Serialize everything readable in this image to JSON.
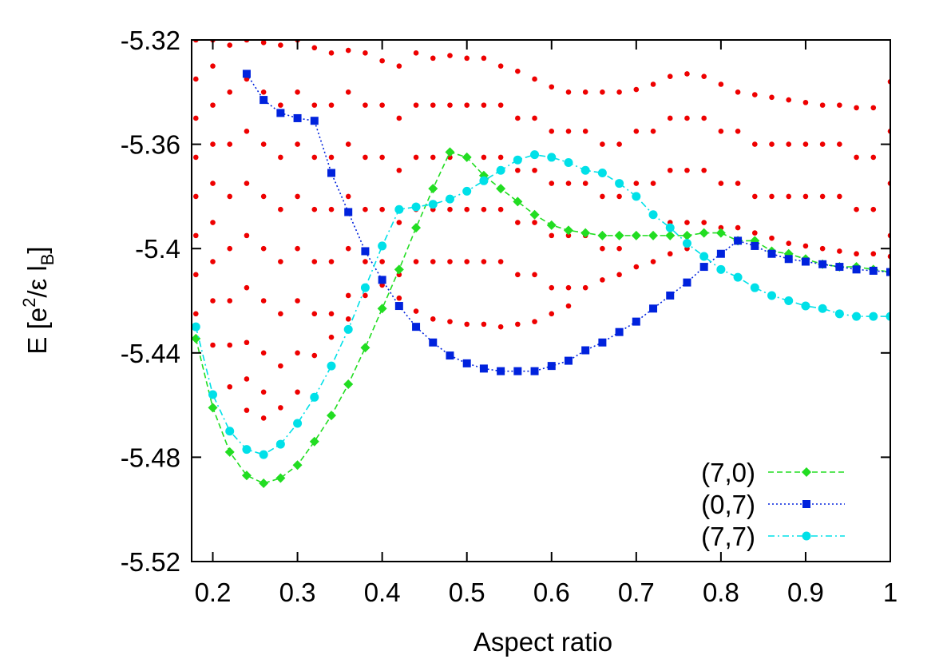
{
  "chart_data": {
    "type": "line",
    "xlabel": "Aspect ratio",
    "ylabel_parts": [
      "E [e",
      "2",
      "/ε l",
      "B",
      "]"
    ],
    "xlim": [
      0.175,
      1
    ],
    "ylim": [
      -5.52,
      -5.32
    ],
    "xticks": [
      0.2,
      0.3,
      0.4,
      0.5,
      0.6,
      0.7,
      0.8,
      0.9,
      1
    ],
    "yticks": [
      -5.32,
      -5.36,
      -5.4,
      -5.44,
      -5.48,
      -5.52
    ],
    "legend": "lower right",
    "x": [
      0.18,
      0.2,
      0.22,
      0.24,
      0.26,
      0.28,
      0.3,
      0.32,
      0.34,
      0.36,
      0.38,
      0.4,
      0.42,
      0.44,
      0.46,
      0.48,
      0.5,
      0.52,
      0.54,
      0.56,
      0.58,
      0.6,
      0.62,
      0.64,
      0.66,
      0.68,
      0.7,
      0.72,
      0.74,
      0.76,
      0.78,
      0.8,
      0.82,
      0.84,
      0.86,
      0.88,
      0.9,
      0.92,
      0.94,
      0.96,
      0.98,
      1
    ],
    "spectrum": {
      "color": "#ee0000",
      "values": [
        [
          -5.32,
          -5.335,
          -5.35,
          -5.365,
          -5.38,
          -5.395,
          -5.41,
          -5.425
        ],
        [
          -5.32,
          -5.33,
          -5.345,
          -5.36,
          -5.375,
          -5.39,
          -5.405,
          -5.42,
          -5.437
        ],
        [
          -5.322,
          -5.34,
          -5.36,
          -5.38,
          -5.4,
          -5.42,
          -5.437,
          -5.453
        ],
        [
          -5.32,
          -5.335,
          -5.355,
          -5.375,
          -5.395,
          -5.415,
          -5.436,
          -5.45,
          -5.462
        ],
        [
          -5.321,
          -5.34,
          -5.36,
          -5.38,
          -5.4,
          -5.42,
          -5.44,
          -5.455,
          -5.465
        ],
        [
          -5.322,
          -5.345,
          -5.365,
          -5.385,
          -5.405,
          -5.425,
          -5.445,
          -5.461
        ],
        [
          -5.32,
          -5.34,
          -5.36,
          -5.38,
          -5.4,
          -5.42,
          -5.44,
          -5.455
        ],
        [
          -5.323,
          -5.345,
          -5.365,
          -5.385,
          -5.405,
          -5.425,
          -5.441
        ],
        [
          -5.325,
          -5.345,
          -5.365,
          -5.385,
          -5.405,
          -5.425,
          -5.434
        ],
        [
          -5.324,
          -5.34,
          -5.36,
          -5.38,
          -5.4,
          -5.418,
          -5.427
        ],
        [
          -5.325,
          -5.345,
          -5.365,
          -5.385,
          -5.405,
          -5.418
        ],
        [
          -5.328,
          -5.345,
          -5.365,
          -5.385,
          -5.405,
          -5.414
        ],
        [
          -5.33,
          -5.35,
          -5.37,
          -5.39,
          -5.41,
          -5.419
        ],
        [
          -5.325,
          -5.345,
          -5.365,
          -5.385,
          -5.405,
          -5.424
        ],
        [
          -5.327,
          -5.345,
          -5.365,
          -5.385,
          -5.405,
          -5.427
        ],
        [
          -5.326,
          -5.345,
          -5.365,
          -5.385,
          -5.405,
          -5.428
        ],
        [
          -5.327,
          -5.345,
          -5.365,
          -5.385,
          -5.405,
          -5.429
        ],
        [
          -5.327,
          -5.345,
          -5.365,
          -5.385,
          -5.405,
          -5.429
        ],
        [
          -5.33,
          -5.345,
          -5.365,
          -5.385,
          -5.405,
          -5.43
        ],
        [
          -5.332,
          -5.35,
          -5.37,
          -5.39,
          -5.41,
          -5.429
        ],
        [
          -5.335,
          -5.35,
          -5.37,
          -5.39,
          -5.41,
          -5.428
        ],
        [
          -5.338,
          -5.355,
          -5.375,
          -5.395,
          -5.415,
          -5.425
        ],
        [
          -5.34,
          -5.355,
          -5.375,
          -5.395,
          -5.415,
          -5.422
        ],
        [
          -5.34,
          -5.355,
          -5.375,
          -5.395,
          -5.415
        ],
        [
          -5.34,
          -5.36,
          -5.38,
          -5.4,
          -5.412
        ],
        [
          -5.34,
          -5.36,
          -5.38,
          -5.4,
          -5.41
        ],
        [
          -5.339,
          -5.355,
          -5.375,
          -5.395,
          -5.407
        ],
        [
          -5.337,
          -5.355,
          -5.375,
          -5.395,
          -5.405
        ],
        [
          -5.334,
          -5.35,
          -5.37,
          -5.39,
          -5.402
        ],
        [
          -5.333,
          -5.35,
          -5.37,
          -5.39,
          -5.4
        ],
        [
          -5.334,
          -5.35,
          -5.37,
          -5.39
        ],
        [
          -5.337,
          -5.355,
          -5.375,
          -5.392
        ],
        [
          -5.34,
          -5.355,
          -5.375,
          -5.392
        ],
        [
          -5.341,
          -5.36,
          -5.38,
          -5.394
        ],
        [
          -5.342,
          -5.36,
          -5.38,
          -5.396
        ],
        [
          -5.343,
          -5.36,
          -5.38,
          -5.398
        ],
        [
          -5.344,
          -5.36,
          -5.38,
          -5.399
        ],
        [
          -5.345,
          -5.36,
          -5.38,
          -5.4
        ],
        [
          -5.345,
          -5.36,
          -5.38,
          -5.401
        ],
        [
          -5.346,
          -5.365,
          -5.385,
          -5.402
        ],
        [
          -5.346,
          -5.365,
          -5.385,
          -5.402
        ],
        [
          -5.336,
          -5.355,
          -5.375,
          -5.395,
          -5.403
        ]
      ]
    },
    "series": [
      {
        "name": "(7,0)",
        "color": "#22dd22",
        "marker": "diamond",
        "dash": "dashed",
        "values": [
          -5.4345,
          -5.461,
          -5.478,
          -5.487,
          -5.49,
          -5.488,
          -5.483,
          -5.474,
          -5.464,
          -5.452,
          -5.438,
          -5.423,
          -5.408,
          -5.392,
          -5.377,
          -5.363,
          -5.365,
          -5.372,
          -5.377,
          -5.382,
          -5.387,
          -5.391,
          -5.393,
          -5.394,
          -5.395,
          -5.395,
          -5.395,
          -5.395,
          -5.395,
          -5.395,
          -5.394,
          -5.394,
          -5.397,
          -5.397,
          -5.401,
          -5.402,
          -5.404,
          -5.406,
          -5.407,
          -5.407,
          -5.408,
          -5.409
        ]
      },
      {
        "name": "(0,7)",
        "color": "#0022dd",
        "marker": "square",
        "dash": "dotted",
        "values": [
          null,
          null,
          null,
          -5.333,
          -5.343,
          -5.348,
          -5.35,
          -5.351,
          -5.371,
          -5.386,
          -5.401,
          -5.412,
          -5.422,
          -5.43,
          -5.436,
          -5.441,
          -5.444,
          -5.446,
          -5.447,
          -5.447,
          -5.447,
          -5.445,
          -5.443,
          -5.439,
          -5.436,
          -5.432,
          -5.428,
          -5.423,
          -5.418,
          -5.413,
          -5.407,
          -5.402,
          -5.397,
          -5.399,
          -5.402,
          -5.404,
          -5.405,
          -5.406,
          -5.407,
          -5.408,
          -5.4085,
          -5.409
        ]
      },
      {
        "name": "(7,7)",
        "color": "#00e0e8",
        "marker": "circle",
        "dash": "dashdot",
        "values": [
          -5.43,
          -5.456,
          -5.47,
          -5.477,
          -5.479,
          -5.475,
          -5.467,
          -5.457,
          -5.445,
          -5.431,
          -5.415,
          -5.399,
          -5.385,
          -5.384,
          -5.383,
          -5.381,
          -5.378,
          -5.374,
          -5.37,
          -5.366,
          -5.364,
          -5.365,
          -5.367,
          -5.37,
          -5.371,
          -5.375,
          -5.38,
          -5.387,
          -5.392,
          -5.398,
          -5.403,
          -5.408,
          -5.411,
          -5.415,
          -5.418,
          -5.42,
          -5.422,
          -5.423,
          -5.425,
          -5.426,
          -5.426,
          -5.426
        ]
      }
    ]
  }
}
